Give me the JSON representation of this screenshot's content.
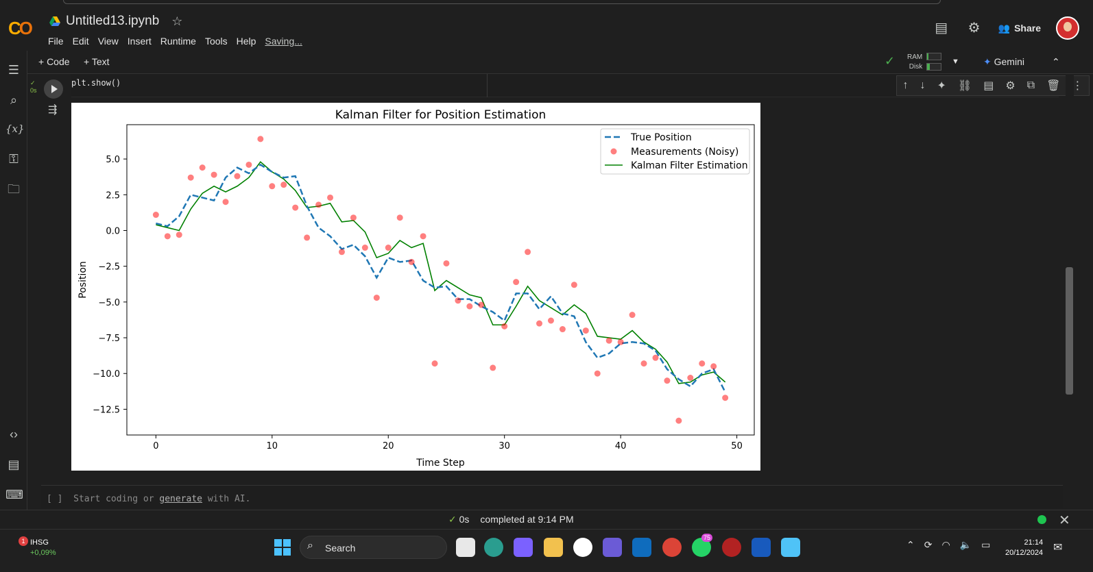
{
  "header": {
    "notebook_title": "Untitled13.ipynb",
    "menu": [
      "File",
      "Edit",
      "View",
      "Insert",
      "Runtime",
      "Tools",
      "Help"
    ],
    "saving": "Saving...",
    "share_label": "Share"
  },
  "toolbar": {
    "code_label": "+ Code",
    "text_label": "+ Text",
    "ram_label": "RAM",
    "disk_label": "Disk",
    "ram_fraction": 0.1,
    "disk_fraction": 0.2,
    "gemini_label": "Gemini"
  },
  "cell": {
    "status_time": "0s",
    "code_line": "plt.show()"
  },
  "empty_cell": {
    "brackets": "[ ]",
    "placeholder_prefix": "Start coding or",
    "placeholder_link": "generate",
    "placeholder_suffix": "with AI."
  },
  "statusbar": {
    "time": "0s",
    "message": "completed at 9:14 PM"
  },
  "taskbar": {
    "stock_name": "IHSG",
    "stock_change": "+0,09%",
    "stock_badge": "1",
    "search_label": "Search",
    "whatsapp_badge": "75",
    "time": "21:14",
    "date": "20/12/2024"
  },
  "colors": {
    "true_position": "#1f77b4",
    "measurements": "#ff0000",
    "kalman": "#008000"
  },
  "chart_data": {
    "type": "line",
    "title": "Kalman Filter for Position Estimation",
    "xlabel": "Time Step",
    "ylabel": "Position",
    "xlim": [
      -2.5,
      51.5
    ],
    "ylim": [
      -14.3,
      7.4
    ],
    "xticks": [
      0,
      10,
      20,
      30,
      40,
      50
    ],
    "yticks": [
      5.0,
      2.5,
      0.0,
      -2.5,
      -5.0,
      -7.5,
      -10.0,
      -12.5
    ],
    "xtick_labels": [
      "0",
      "10",
      "20",
      "30",
      "40",
      "50"
    ],
    "ytick_labels": [
      "5.0",
      "2.5",
      "0.0",
      "−2.5",
      "−5.0",
      "−7.5",
      "−10.0",
      "−12.5"
    ],
    "legend_position": "top-right",
    "series": [
      {
        "name": "True Position",
        "style": "dashed",
        "values": [
          0.5,
          0.3,
          1.0,
          2.5,
          2.3,
          2.1,
          3.7,
          4.4,
          4.0,
          4.6,
          4.1,
          3.7,
          3.8,
          1.7,
          0.2,
          -0.4,
          -1.3,
          -1.0,
          -1.8,
          -3.3,
          -1.9,
          -2.2,
          -2.1,
          -3.5,
          -4.0,
          -3.9,
          -4.8,
          -4.8,
          -5.3,
          -5.7,
          -6.3,
          -4.4,
          -4.4,
          -5.5,
          -4.6,
          -5.8,
          -6.0,
          -7.8,
          -8.9,
          -8.6,
          -7.9,
          -7.8,
          -7.9,
          -8.4,
          -9.7,
          -10.4,
          -10.9,
          -10.0,
          -9.7,
          -11.3
        ]
      },
      {
        "name": "Measurements (Noisy)",
        "style": "scatter",
        "values": [
          1.1,
          -0.4,
          -0.3,
          3.7,
          4.4,
          3.9,
          2.0,
          3.8,
          4.6,
          6.4,
          3.1,
          3.2,
          1.6,
          -0.5,
          1.8,
          2.3,
          -1.5,
          0.9,
          -1.2,
          -4.7,
          -1.2,
          0.9,
          -2.2,
          -0.4,
          -9.3,
          -2.3,
          -4.9,
          -5.3,
          -5.2,
          -9.6,
          -6.7,
          -3.6,
          -1.5,
          -6.5,
          -6.3,
          -6.9,
          -3.8,
          -7.0,
          -10.0,
          -7.7,
          -7.8,
          -5.9,
          -9.3,
          -8.9,
          -10.5,
          -13.3,
          -10.3,
          -9.3,
          -9.5,
          -11.7
        ]
      },
      {
        "name": "Kalman Filter Estimation",
        "style": "solid",
        "values": [
          0.4,
          0.2,
          0.0,
          1.5,
          2.6,
          3.1,
          2.7,
          3.1,
          3.7,
          4.8,
          4.1,
          3.6,
          2.8,
          1.6,
          1.7,
          1.9,
          0.6,
          0.7,
          -0.1,
          -1.9,
          -1.6,
          -0.7,
          -1.2,
          -0.9,
          -4.2,
          -3.5,
          -4.0,
          -4.5,
          -4.7,
          -6.6,
          -6.6,
          -5.3,
          -3.9,
          -4.9,
          -5.4,
          -5.9,
          -5.2,
          -5.8,
          -7.4,
          -7.5,
          -7.6,
          -7.0,
          -7.8,
          -8.3,
          -9.2,
          -10.7,
          -10.6,
          -10.1,
          -9.9,
          -10.6
        ]
      }
    ]
  }
}
